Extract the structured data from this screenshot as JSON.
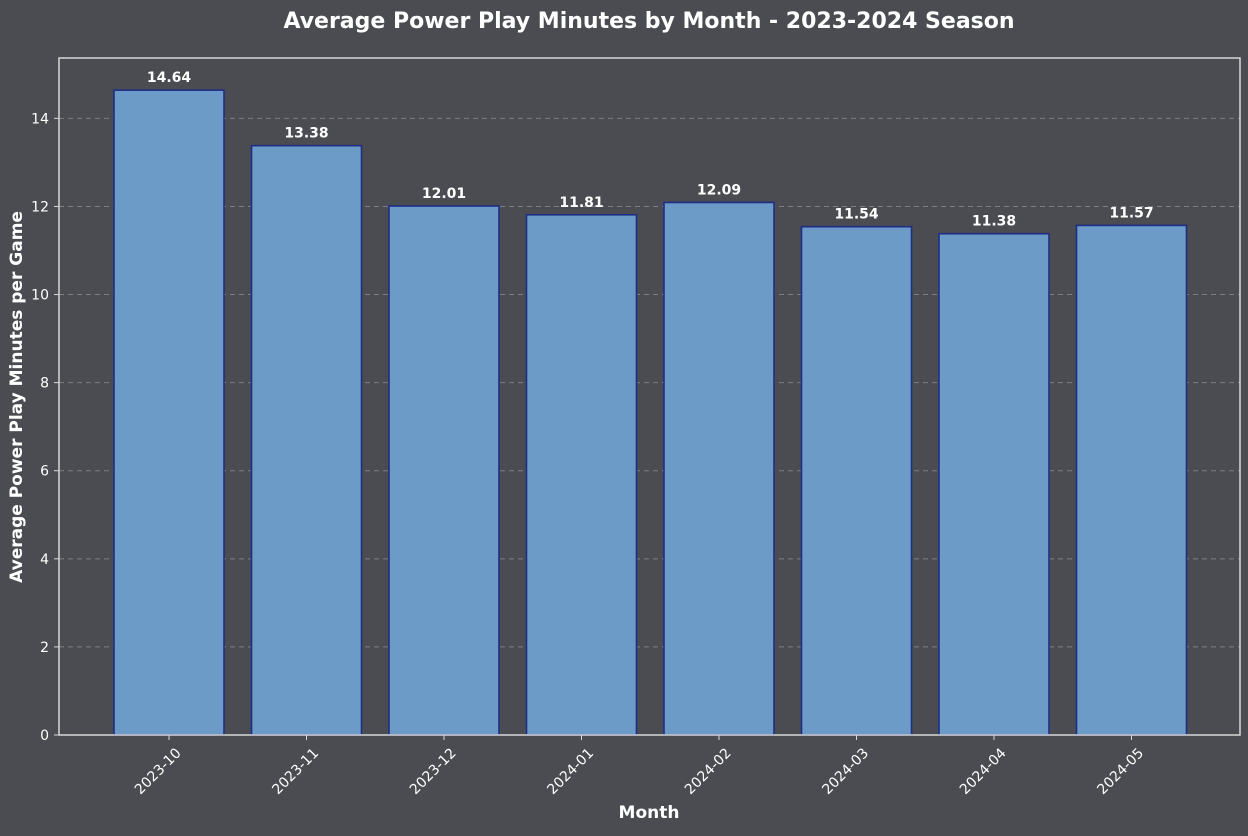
{
  "chart_data": {
    "type": "bar",
    "title": "Average Power Play Minutes by Month - 2023-2024 Season",
    "xlabel": "Month",
    "ylabel": "Average Power Play Minutes per Game",
    "categories": [
      "2023-10",
      "2023-11",
      "2023-12",
      "2024-01",
      "2024-02",
      "2024-03",
      "2024-04",
      "2024-05"
    ],
    "values": [
      14.64,
      13.38,
      12.01,
      11.81,
      12.09,
      11.54,
      11.38,
      11.57
    ],
    "data_labels": [
      "14.64",
      "13.38",
      "12.01",
      "11.81",
      "12.09",
      "11.54",
      "11.38",
      "11.57"
    ],
    "ylim": [
      0,
      15.37
    ],
    "yticks": [
      0,
      2,
      4,
      6,
      8,
      10,
      12,
      14
    ],
    "grid": "y-dashed",
    "legend": "none",
    "colors": {
      "background": "#4a4c51",
      "bar_fill": "#6b9bc6",
      "bar_edge": "#1f2d86",
      "grid": "#7d7f84",
      "text": "#ffffff",
      "axis": "#d8d8d8"
    }
  }
}
